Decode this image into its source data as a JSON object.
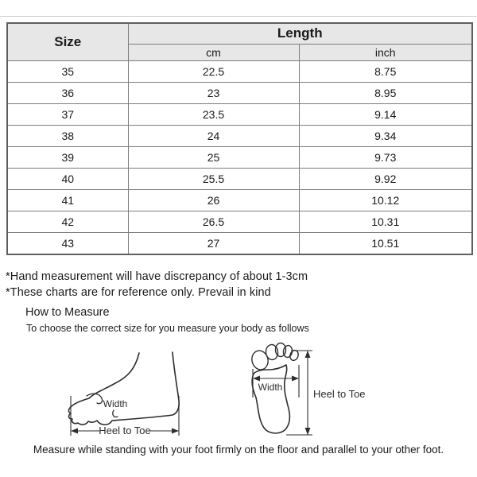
{
  "table": {
    "col_size": "Size",
    "col_length": "Length",
    "col_cm": "cm",
    "col_inch": "inch",
    "rows": [
      {
        "size": "35",
        "cm": "22.5",
        "inch": "8.75"
      },
      {
        "size": "36",
        "cm": "23",
        "inch": "8.95"
      },
      {
        "size": "37",
        "cm": "23.5",
        "inch": "9.14"
      },
      {
        "size": "38",
        "cm": "24",
        "inch": "9.34"
      },
      {
        "size": "39",
        "cm": "25",
        "inch": "9.73"
      },
      {
        "size": "40",
        "cm": "25.5",
        "inch": "9.92"
      },
      {
        "size": "41",
        "cm": "26",
        "inch": "10.12"
      },
      {
        "size": "42",
        "cm": "26.5",
        "inch": "10.31"
      },
      {
        "size": "43",
        "cm": "27",
        "inch": "10.51"
      }
    ]
  },
  "notes": {
    "line1": "*Hand measurement will have discrepancy of about 1-3cm",
    "line2": "*These charts are for reference only. Prevail in kind"
  },
  "how_to_measure": {
    "title": "How to Measure",
    "subtitle": "To choose the correct size for you measure your body as follows",
    "caption": "Measure while standing with your foot firmly on the floor and parallel to your other foot."
  },
  "diagram": {
    "side_view": {
      "width_label": "Width",
      "length_label": "Heel to Toe"
    },
    "top_view": {
      "width_label": "Width",
      "length_label": "Heel to Toe"
    }
  },
  "colors": {
    "header_bg": "#e7e7e7",
    "border_inner": "#7d7d7d",
    "border_outer": "#5f5f5f",
    "text": "#1a1a1a",
    "line_art": "#2e2e2e",
    "top_rule": "#cccccc"
  }
}
